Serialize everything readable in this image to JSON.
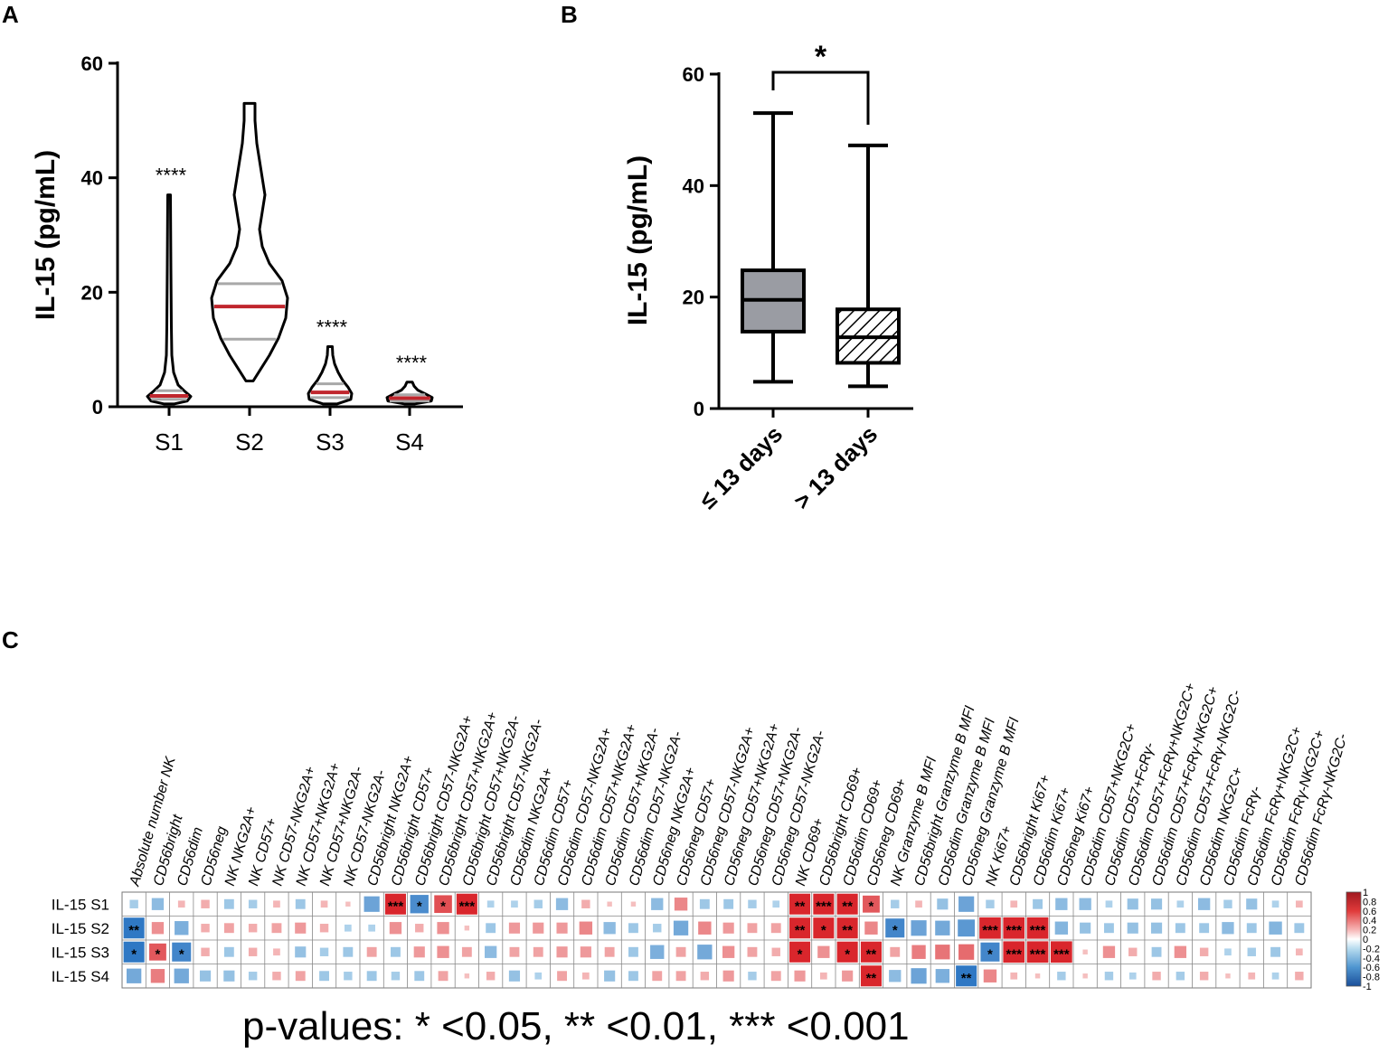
{
  "colors": {
    "violin_median": "#c0262d",
    "violin_quartile": "#a8a8a8",
    "box_fill_B1": "#9a9ca3",
    "heat_pos": "#d9262c",
    "heat_neg": "#2f78c4"
  },
  "chart_data": [
    {
      "panel": "A",
      "type": "violin",
      "ylabel": "IL-15 (pg/mL)",
      "ylim": [
        0,
        60
      ],
      "yticks": [
        "0",
        "20",
        "40",
        "60"
      ],
      "categories": [
        "S1",
        "S2",
        "S3",
        "S4"
      ],
      "series": [
        {
          "name": "S1",
          "min": 0.5,
          "max": 37,
          "q1": 1.3,
          "median": 1.9,
          "q3": 2.8,
          "significance": "****"
        },
        {
          "name": "S2",
          "min": 4.5,
          "max": 53,
          "q1": 11.8,
          "median": 17.5,
          "q3": 21.5,
          "significance": ""
        },
        {
          "name": "S3",
          "min": 0.5,
          "max": 10.5,
          "q1": 1.6,
          "median": 2.5,
          "q3": 4.0,
          "significance": "****"
        },
        {
          "name": "S4",
          "min": 0.5,
          "max": 4.3,
          "q1": 1.0,
          "median": 1.5,
          "q3": 2.1,
          "significance": "****"
        }
      ]
    },
    {
      "panel": "B",
      "type": "box",
      "ylabel": "IL-15 (pg/mL)",
      "ylim": [
        0,
        60
      ],
      "yticks": [
        "0",
        "20",
        "40",
        "60"
      ],
      "categories": [
        "≤ 13 days",
        "> 13 days"
      ],
      "series": [
        {
          "name": "≤ 13 days",
          "min": 4.8,
          "q1": 13.8,
          "median": 19.5,
          "q3": 24.8,
          "max": 53
        },
        {
          "name": "> 13 days",
          "min": 4.0,
          "q1": 8.2,
          "median": 12.8,
          "q3": 17.8,
          "max": 47.2
        }
      ],
      "significance": "*"
    },
    {
      "panel": "C",
      "type": "heatmap",
      "rows": [
        "IL-15 S1",
        "IL-15 S2",
        "IL-15 S3",
        "IL-15 S4"
      ],
      "columns": [
        "Absolute number NK",
        "CD56bright",
        "CD56dim",
        "CD56neg",
        "NK NKG2A+",
        "NK CD57+",
        "NK CD57-NKG2A+",
        "NK CD57+NKG2A+",
        "NK CD57+NKG2A-",
        "NK CD57-NKG2A-",
        "CD56bright NKG2A+",
        "CD56bright CD57+",
        "CD56bright CD57-NKG2A+",
        "CD56bright CD57+NKG2A+",
        "CD56bright CD57+NKG2A-",
        "CD56bright CD57-NKG2A-",
        "CD56dim NKG2A+",
        "CD56dim CD57+",
        "CD56dim CD57-NKG2A+",
        "CD56dim CD57+NKG2A+",
        "CD56dim CD57+NKG2A-",
        "CD56dim CD57-NKG2A-",
        "CD56neg NKG2A+",
        "CD56neg CD57+",
        "CD56neg CD57-NKG2A+",
        "CD56neg CD57+NKG2A+",
        "CD56neg CD57+NKG2A-",
        "CD56neg CD57-NKG2A-",
        "NK CD69+",
        "CD56bright CD69+",
        "CD56dim CD69+",
        "CD56neg CD69+",
        "NK Granzyme B MFI",
        "CD56bright Granzyme B MFI",
        "CD56dim Granzyme B MFI",
        "CD56neg Granzyme B MFI",
        "NK Ki67+",
        "CD56bright Ki67+",
        "CD56dim Ki67+",
        "CD56neg Ki67+",
        "CD56dim CD57+NKG2C+",
        "CD56dim CD57+FcRγ-",
        "CD56dim CD57+FcRγ+NKG2C+",
        "CD56dim CD57+FcRγ-NKG2C+",
        "CD56dim CD57+FcRγ-NKG2C-",
        "CD56dim NKG2C+",
        "CD56dim FcRγ-",
        "CD56dim FcRγ+NKG2C+",
        "CD56dim FcRγ-NKG2C+",
        "CD56dim FcRγ-NKG2C-"
      ],
      "values": [
        [
          -0.15,
          -0.3,
          0.1,
          0.15,
          -0.2,
          -0.15,
          0.1,
          -0.2,
          0.1,
          0.05,
          -0.5,
          0.9,
          -0.7,
          0.65,
          0.9,
          -0.1,
          -0.1,
          -0.15,
          -0.3,
          0.15,
          0.05,
          0.05,
          -0.3,
          0.35,
          -0.2,
          -0.2,
          -0.15,
          -0.1,
          0.9,
          0.9,
          0.9,
          0.6,
          -0.15,
          0.1,
          -0.25,
          -0.5,
          -0.15,
          0.1,
          -0.2,
          -0.3,
          -0.3,
          -0.1,
          -0.25,
          -0.25,
          -0.1,
          -0.3,
          -0.15,
          -0.25,
          -0.1,
          0.1
        ],
        [
          -0.9,
          0.3,
          -0.4,
          0.15,
          0.2,
          0.15,
          0.2,
          0.25,
          0.15,
          -0.1,
          -0.1,
          0.3,
          0.15,
          0.3,
          0.05,
          -0.2,
          0.25,
          0.25,
          0.25,
          0.35,
          -0.3,
          -0.2,
          -0.15,
          -0.45,
          0.35,
          0.25,
          0.2,
          0.2,
          0.9,
          0.9,
          0.9,
          0.35,
          -0.75,
          -0.5,
          -0.45,
          -0.6,
          0.95,
          0.95,
          0.95,
          -0.35,
          -0.25,
          -0.2,
          -0.25,
          -0.25,
          -0.2,
          -0.2,
          -0.3,
          -0.2,
          -0.35,
          -0.2
        ],
        [
          -0.9,
          0.6,
          -0.75,
          0.15,
          -0.2,
          0.15,
          0.1,
          -0.25,
          -0.15,
          -0.2,
          0.2,
          -0.2,
          0.25,
          0.3,
          0.2,
          -0.3,
          0.2,
          0.2,
          0.25,
          0.25,
          0.2,
          -0.2,
          -0.4,
          0.2,
          -0.45,
          0.3,
          0.2,
          0.15,
          0.9,
          0.3,
          0.9,
          0.9,
          0.2,
          0.4,
          0.45,
          0.5,
          -0.75,
          0.95,
          0.95,
          0.95,
          0.05,
          0.3,
          0.15,
          -0.2,
          0.3,
          0.15,
          -0.1,
          -0.15,
          -0.2,
          0.1
        ],
        [
          -0.45,
          0.4,
          -0.45,
          -0.25,
          -0.25,
          -0.15,
          0.15,
          0.2,
          -0.2,
          -0.15,
          -0.2,
          -0.15,
          -0.2,
          0.2,
          0.05,
          0.15,
          -0.25,
          -0.1,
          0.2,
          0.1,
          -0.25,
          -0.2,
          0.2,
          0.2,
          0.15,
          0.25,
          -0.15,
          0.2,
          0.25,
          0.1,
          0.25,
          0.9,
          -0.3,
          -0.5,
          -0.4,
          -0.9,
          0.35,
          0.1,
          0.05,
          -0.15,
          0.05,
          -0.15,
          -0.1,
          0.15,
          -0.15,
          0.15,
          0.05,
          0.1,
          -0.1,
          0.15
        ]
      ],
      "stars": [
        [
          "",
          "",
          "",
          "",
          "",
          "",
          "",
          "",
          "",
          "",
          "",
          "***",
          "*",
          "*",
          "***",
          "",
          "",
          "",
          "",
          "",
          "",
          "",
          "",
          "",
          "",
          "",
          "",
          "",
          "**",
          "***",
          "**",
          "*",
          "",
          "",
          "",
          "",
          "",
          "",
          "",
          "",
          "",
          "",
          "",
          "",
          "",
          "",
          "",
          "",
          "",
          ""
        ],
        [
          "**",
          "",
          "",
          "",
          "",
          "",
          "",
          "",
          "",
          "",
          "",
          "",
          "",
          "",
          "",
          "",
          "",
          "",
          "",
          "",
          "",
          "",
          "",
          "",
          "",
          "",
          "",
          "",
          "**",
          "*",
          "**",
          "",
          "*",
          "",
          "",
          "",
          "***",
          "***",
          "***",
          "",
          "",
          "",
          "",
          "",
          "",
          "",
          "",
          "",
          "",
          ""
        ],
        [
          "*",
          "*",
          "*",
          "",
          "",
          "",
          "",
          "",
          "",
          "",
          "",
          "",
          "",
          "",
          "",
          "",
          "",
          "",
          "",
          "",
          "",
          "",
          "",
          "",
          "",
          "",
          "",
          "",
          "*",
          "",
          "*",
          "**",
          "",
          "",
          "",
          "",
          "*",
          "***",
          "***",
          "***",
          "",
          "",
          "",
          "",
          "",
          "",
          "",
          "",
          "",
          ""
        ],
        [
          "",
          "",
          "",
          "",
          "",
          "",
          "",
          "",
          "",
          "",
          "",
          "",
          "",
          "",
          "",
          "",
          "",
          "",
          "",
          "",
          "",
          "",
          "",
          "",
          "",
          "",
          "",
          "",
          "",
          "",
          "",
          "**",
          "",
          "",
          "",
          "**",
          "",
          "",
          "",
          "",
          "",
          "",
          "",
          "",
          "",
          "",
          "",
          "",
          "",
          ""
        ]
      ],
      "colorbar_ticks": [
        "1",
        "0.8",
        "0.6",
        "0.4",
        "0.2",
        "0",
        "-0.2",
        "-0.4",
        "-0.6",
        "-0.8",
        "-1"
      ],
      "colorbar_range": [
        -1,
        1
      ]
    }
  ],
  "panel_labels": {
    "a": "A",
    "b": "B",
    "c": "C"
  },
  "pvalue_legend": "p-values: * <0.05, ** <0.01, *** <0.001"
}
